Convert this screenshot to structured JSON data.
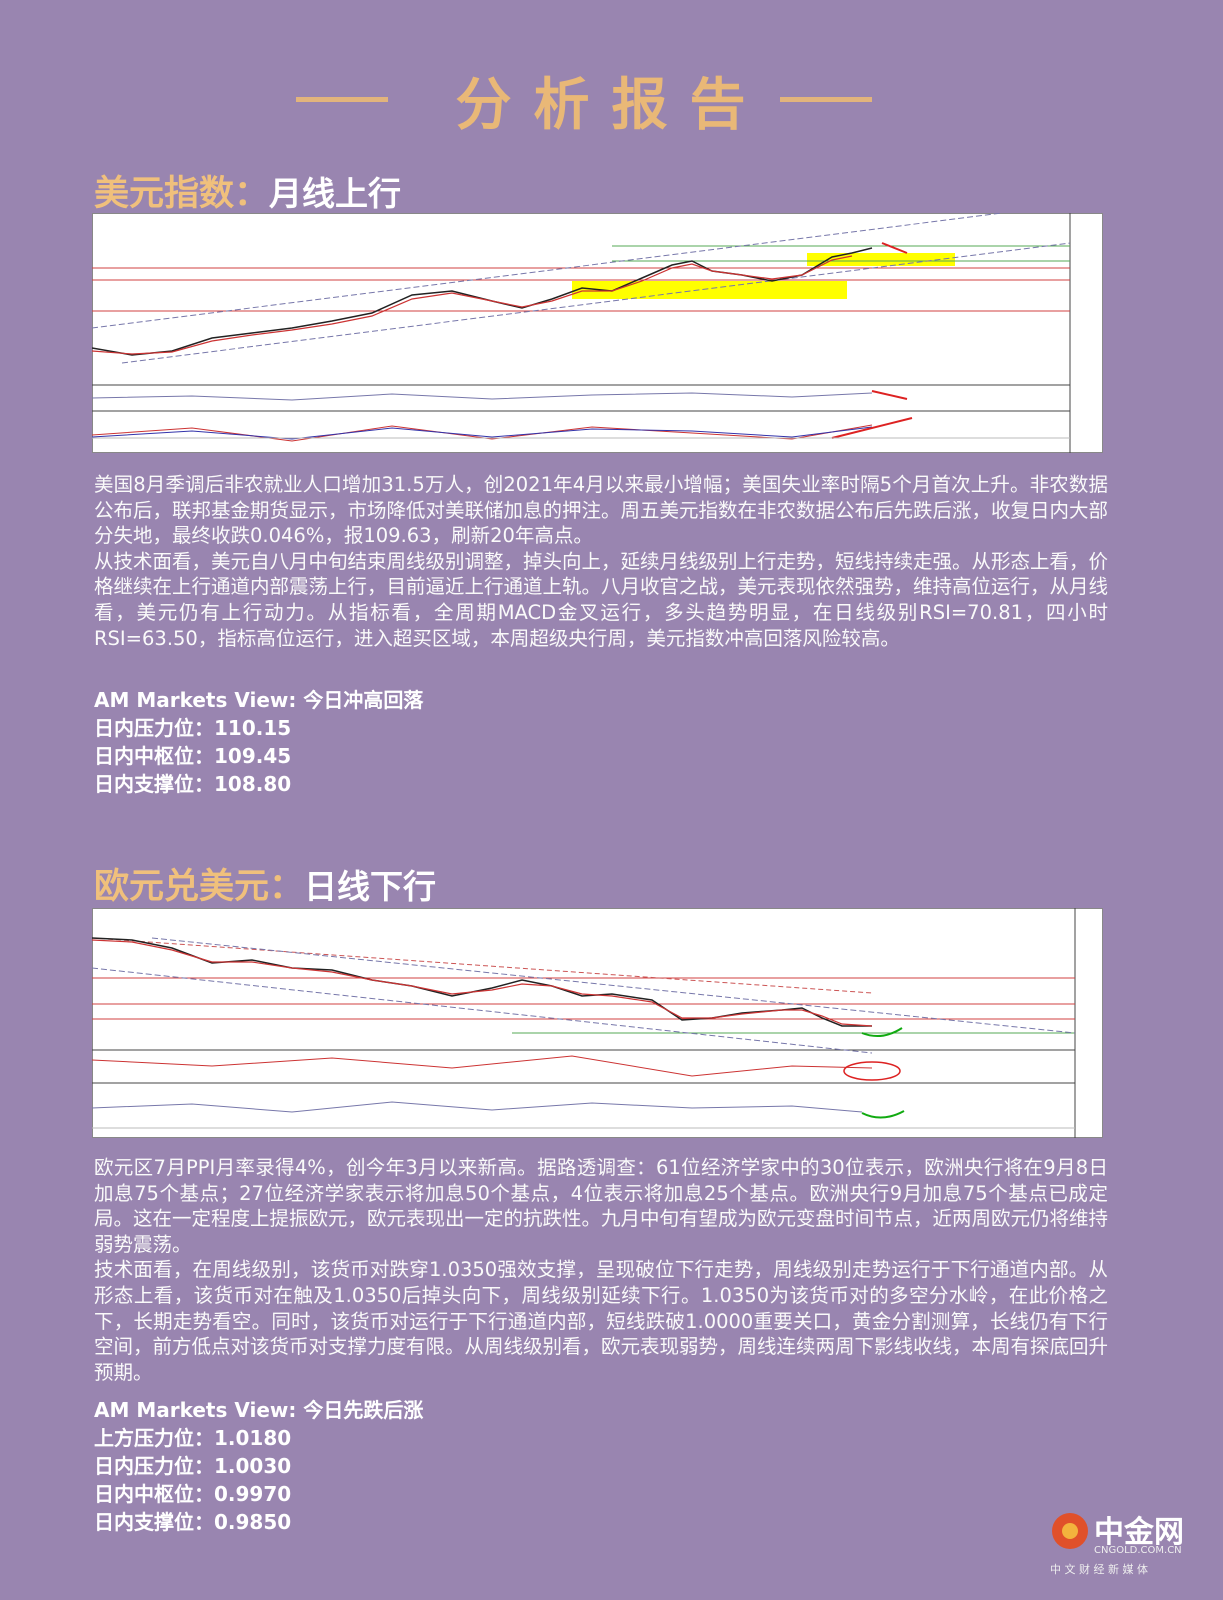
{
  "header": {
    "title": "分析报告"
  },
  "sections": [
    {
      "title": "美元指数：",
      "subtitle": "月线上行",
      "paragraphs": [
        "美国8月季调后非农就业人口增加31.5万人，创2021年4月以来最小增幅；美国失业率时隔5个月首次上升。非农数据公布后，联邦基金期货显示，市场降低对美联储加息的押注。周五美元指数在非农数据公布后先跌后涨，收复日内大部分失地，最终收跌0.046%，报109.63，刷新20年高点。",
        "从技术面看，美元自八月中旬结束周线级别调整，掉头向上，延续月线级别上行走势，短线持续走强。从形态上看，价格继续在上行通道内部震荡上行，目前逼近上行通道上轨。八月收官之战，美元表现依然强势，维持高位运行，从月线看，美元仍有上行动力。从指标看，全周期MACD金叉运行，多头趋势明显，在日线级别RSI=70.81，四小时RSI=63.50，指标高位运行，进入超买区域，本周超级央行周，美元指数冲高回落风险较高。"
      ],
      "view": "AM Markets View: 今日冲高回落",
      "levels": [
        "日内压力位：110.15",
        "日内中枢位：109.45",
        "日内支撑位：108.80"
      ]
    },
    {
      "title": "欧元兑美元：",
      "subtitle": "日线下行",
      "paragraphs": [
        "欧元区7月PPI月率录得4%，创今年3月以来新高。据路透调查：61位经济学家中的30位表示，欧洲央行将在9月8日加息75个基点；27位经济学家表示将加息50个基点，4位表示将加息25个基点。欧洲央行9月加息75个基点已成定局。这在一定程度上提振欧元，欧元表现出一定的抗跌性。九月中旬有望成为欧元变盘时间节点，近两周欧元仍将维持弱势震荡。",
        "技术面看，在周线级别，该货币对跌穿1.0350强效支撑，呈现破位下行走势，周线级别走势运行于下行通道内部。从形态上看，该货币对在触及1.0350后掉头向下，周线级别延续下行。1.0350为该货币对的多空分水岭，在此价格之下，长期走势看空。同时，该货币对运行于下行通道内部，短线跌破1.0000重要关口，黄金分割测算，长线仍有下行空间，前方低点对该货币对支撑力度有限。从周线级别看，欧元表现弱势，周线连续两周下影线收线，本周有探底回升预期。"
      ],
      "view": "AM Markets View: 今日先跌后涨",
      "levels": [
        "上方压力位：1.0180",
        "日内压力位：1.0030",
        "日内中枢位：0.9970",
        "日内支撑位：0.9850"
      ]
    }
  ],
  "footer": {
    "logo": "中金网",
    "domain": "CNGOLD.COM.CN",
    "slogan": "中 文 财 经 新 媒 体"
  }
}
